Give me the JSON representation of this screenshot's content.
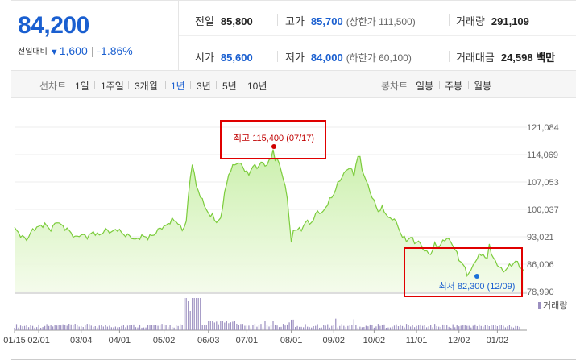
{
  "quote": {
    "price": "84,200",
    "change_label": "전일대비",
    "change_arrow": "▼",
    "change_amount": "1,600",
    "change_pct": "-1.86%",
    "prev_close_label": "전일",
    "prev_close": "85,800",
    "high_label": "고가",
    "high": "85,700",
    "upper_limit": "(상한가 111,500)",
    "volume_label": "거래량",
    "volume": "291,109",
    "open_label": "시가",
    "open": "85,600",
    "low_label": "저가",
    "low": "84,000",
    "lower_limit": "(하한가 60,100)",
    "amount_label": "거래대금",
    "amount": "24,598 백만"
  },
  "period_tabs": {
    "title": "선차트",
    "items": [
      "1일",
      "1주일",
      "3개월",
      "1년",
      "3년",
      "5년",
      "10년"
    ],
    "active": "1년"
  },
  "candle_tabs": {
    "title": "봉차트",
    "items": [
      "일봉",
      "주봉",
      "월봉"
    ]
  },
  "colors": {
    "accent": "#1a5fd0",
    "line": "#7ccc3c",
    "fill_top": "#c8efa8",
    "volume_bar": "#9b8fc0",
    "annotation_box": "#e00000",
    "high_marker": "#d00000",
    "low_marker": "#1a6fd8"
  },
  "chart_data": {
    "type": "area",
    "y_ticks": [
      "121,084",
      "114,069",
      "107,053",
      "100,037",
      "93,021",
      "86,006",
      "78,990"
    ],
    "y_tick_values": [
      121084,
      114069,
      107053,
      100037,
      93021,
      86006,
      78990
    ],
    "ylim": [
      78990,
      121084
    ],
    "x_ticks": [
      "01/15",
      "02/01",
      "03/04",
      "04/01",
      "05/02",
      "06/03",
      "07/01",
      "08/01",
      "09/02",
      "10/02",
      "11/01",
      "12/02",
      "01/02"
    ],
    "x_tick_index": [
      0,
      12,
      33,
      52,
      74,
      96,
      115,
      137,
      158,
      178,
      199,
      220,
      239
    ],
    "num_days": 250,
    "price_keypoints": [
      [
        0,
        95200
      ],
      [
        3,
        93400
      ],
      [
        6,
        92300
      ],
      [
        9,
        94800
      ],
      [
        12,
        95600
      ],
      [
        15,
        96200
      ],
      [
        18,
        94800
      ],
      [
        21,
        97000
      ],
      [
        24,
        95600
      ],
      [
        27,
        94600
      ],
      [
        30,
        92800
      ],
      [
        33,
        93600
      ],
      [
        36,
        93000
      ],
      [
        39,
        94200
      ],
      [
        42,
        93400
      ],
      [
        45,
        94800
      ],
      [
        48,
        94200
      ],
      [
        51,
        95000
      ],
      [
        54,
        93600
      ],
      [
        57,
        93200
      ],
      [
        60,
        92200
      ],
      [
        63,
        93200
      ],
      [
        66,
        92800
      ],
      [
        69,
        93600
      ],
      [
        72,
        95200
      ],
      [
        75,
        95800
      ],
      [
        78,
        97400
      ],
      [
        81,
        96600
      ],
      [
        83,
        94600
      ],
      [
        85,
        97000
      ],
      [
        86,
        103000
      ],
      [
        87,
        108000
      ],
      [
        88,
        112000
      ],
      [
        89,
        109000
      ],
      [
        90,
        106000
      ],
      [
        92,
        103600
      ],
      [
        94,
        101000
      ],
      [
        96,
        99200
      ],
      [
        97,
        97800
      ],
      [
        98,
        99000
      ],
      [
        100,
        96400
      ],
      [
        102,
        97800
      ],
      [
        104,
        104000
      ],
      [
        106,
        109000
      ],
      [
        108,
        111000
      ],
      [
        110,
        112000
      ],
      [
        112,
        111600
      ],
      [
        114,
        110200
      ],
      [
        116,
        108800
      ],
      [
        118,
        111400
      ],
      [
        120,
        110600
      ],
      [
        122,
        112200
      ],
      [
        124,
        111200
      ],
      [
        126,
        112400
      ],
      [
        127,
        113000
      ],
      [
        128,
        115400
      ],
      [
        129,
        113000
      ],
      [
        131,
        112000
      ],
      [
        133,
        108000
      ],
      [
        135,
        103000
      ],
      [
        136,
        97400
      ],
      [
        137,
        91400
      ],
      [
        138,
        94400
      ],
      [
        140,
        95200
      ],
      [
        142,
        94600
      ],
      [
        144,
        97000
      ],
      [
        146,
        96400
      ],
      [
        148,
        97400
      ],
      [
        150,
        99800
      ],
      [
        152,
        98800
      ],
      [
        154,
        100600
      ],
      [
        156,
        102400
      ],
      [
        158,
        104000
      ],
      [
        160,
        106600
      ],
      [
        162,
        108400
      ],
      [
        164,
        109800
      ],
      [
        166,
        111000
      ],
      [
        168,
        108600
      ],
      [
        169,
        111600
      ],
      [
        170,
        113800
      ],
      [
        171,
        113000
      ],
      [
        172,
        110400
      ],
      [
        174,
        107400
      ],
      [
        176,
        104600
      ],
      [
        178,
        102000
      ],
      [
        180,
        99600
      ],
      [
        182,
        100400
      ],
      [
        184,
        98800
      ],
      [
        186,
        97400
      ],
      [
        188,
        97800
      ],
      [
        190,
        95200
      ],
      [
        192,
        93200
      ],
      [
        194,
        92000
      ],
      [
        196,
        93000
      ],
      [
        198,
        91600
      ],
      [
        200,
        91800
      ],
      [
        202,
        90200
      ],
      [
        204,
        89000
      ],
      [
        206,
        88600
      ],
      [
        208,
        91000
      ],
      [
        210,
        90400
      ],
      [
        212,
        91800
      ],
      [
        214,
        92800
      ],
      [
        216,
        91600
      ],
      [
        218,
        90000
      ],
      [
        220,
        87200
      ],
      [
        222,
        86000
      ],
      [
        224,
        83400
      ],
      [
        226,
        84400
      ],
      [
        228,
        86800
      ],
      [
        230,
        88200
      ],
      [
        232,
        88600
      ],
      [
        234,
        87000
      ],
      [
        235,
        91600
      ],
      [
        236,
        88600
      ],
      [
        238,
        86600
      ],
      [
        240,
        85400
      ],
      [
        242,
        84000
      ],
      [
        244,
        85200
      ],
      [
        246,
        85800
      ],
      [
        248,
        86800
      ],
      [
        250,
        85600
      ],
      [
        252,
        84200
      ]
    ],
    "high_marker": {
      "label": "최고 115,400 (07/17)",
      "index": 128,
      "value": 115400
    },
    "low_marker": {
      "label": "최저 82,300 (12/09)",
      "index": 225,
      "value": 82300
    },
    "volume_legend": "거래량"
  }
}
